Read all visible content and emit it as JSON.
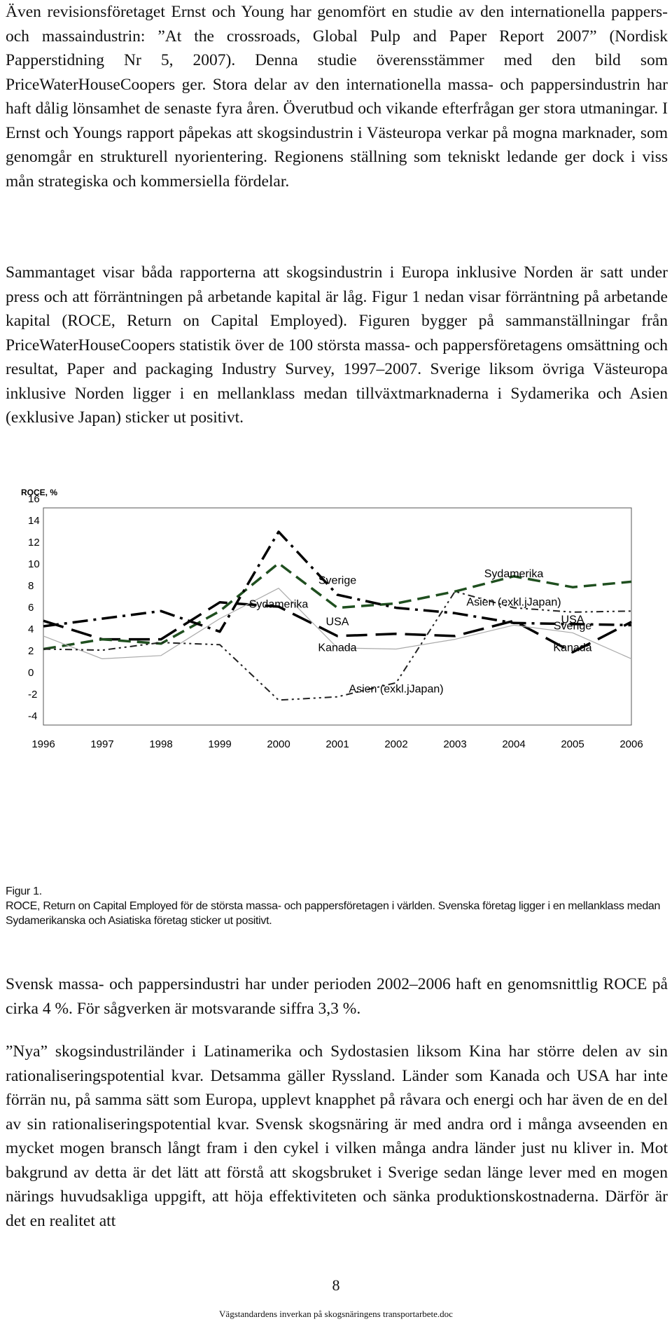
{
  "paragraphs": {
    "p1": "Även revisionsföretaget Ernst och Young har genomfört en studie av den internationella pappers- och massaindustrin: ”At the crossroads, Global Pulp and Paper Report 2007” (Nordisk Papperstidning Nr 5, 2007). Denna studie överensstämmer med den bild som PriceWaterHouseCoopers ger. Stora delar av den internationella massa- och pappersindustrin har haft dålig lönsamhet de senaste fyra åren. Överutbud och vikande efterfrågan ger stora utmaningar. I Ernst och Youngs rapport påpekas att skogsindustrin i Västeuropa verkar på mogna marknader, som genomgår en strukturell nyorientering. Regionens ställning som tekniskt ledande ger dock i viss mån strategiska och kommersiella fördelar.",
    "p2": "Sammantaget visar båda rapporterna att skogsindustrin i Europa inklusive Norden är satt under press och att förräntningen på arbetande kapital är låg. Figur 1 nedan visar förräntning på arbetande kapital (ROCE, Return on Capital Employed). Figuren bygger på sammanställningar från PriceWaterHouseCoopers statistik över de 100 största massa- och pappersföretagens omsättning och resultat, Paper and packaging Industry Survey, 1997–2007. Sverige liksom övriga Västeuropa inklusive Norden ligger i en mellanklass medan tillväxtmarknaderna i Sydamerika och Asien (exklusive Japan) sticker ut positivt.",
    "p3": "Svensk massa- och pappersindustri har under perioden 2002–2006 haft en genomsnittlig ROCE på cirka 4 %. För sågverken är motsvarande siffra 3,3 %.",
    "p4": "”Nya” skogsindustriländer i Latinamerika och Sydostasien liksom Kina har större delen av sin rationaliseringspotential kvar. Detsamma gäller Ryssland. Länder som Kanada och USA har inte förrän nu, på samma sätt som Europa, upplevt knapphet på råvara och energi och har även de en del av sin rationaliseringspotential kvar. Svensk skogsnäring är med andra ord i många avseenden en mycket mogen bransch långt fram i den cykel i vilken många andra länder just nu kliver in. Mot bakgrund av detta är det lätt att förstå att skogsbruket i Sverige sedan länge lever med en mogen närings huvudsakliga uppgift, att höja effektiviteten och sänka produktionskostnaderna. Därför är det en realitet att"
  },
  "caption": {
    "label": "Figur 1.",
    "text": "ROCE, Return on Capital Employed för de största massa- och pappersföretagen i världen. Svenska företag ligger i en mellanklass medan Sydamerikanska och Asiatiska företag sticker ut positivt."
  },
  "page_number": "8",
  "footer": "Vägstandardens inverkan på skogsnäringens transportarbete.doc",
  "chart_data": {
    "type": "line",
    "ylabel": "ROCE, %",
    "xlabel": "",
    "ylim": [
      -4,
      16
    ],
    "yticks": [
      -4,
      -2,
      0,
      2,
      4,
      6,
      8,
      10,
      12,
      14,
      16
    ],
    "x": [
      "1996",
      "1997",
      "1998",
      "1999",
      "2000",
      "2001",
      "2002",
      "2003",
      "2004",
      "2005",
      "2006"
    ],
    "grid": false,
    "series": [
      {
        "name": "Sverige",
        "style": "long-dash",
        "color": "#000000",
        "width": 3.5,
        "values": [
          5.6,
          3.9,
          3.9,
          7.3,
          6.9,
          4.2,
          4.4,
          4.2,
          5.6,
          2.7,
          5.5
        ]
      },
      {
        "name": "Sydamerika",
        "style": "dash",
        "color": "#1f4f1f",
        "width": 3.5,
        "values": [
          3.0,
          3.9,
          3.5,
          6.5,
          10.9,
          6.8,
          7.2,
          8.3,
          9.7,
          8.7,
          9.2
        ]
      },
      {
        "name": "USA",
        "style": "dash-dot",
        "color": "#000000",
        "width": 3.5,
        "values": [
          5.1,
          5.8,
          6.5,
          4.6,
          13.8,
          8.0,
          6.8,
          6.3,
          5.4,
          5.3,
          5.2
        ]
      },
      {
        "name": "Kanada",
        "style": "solid",
        "color": "#aaaaaa",
        "width": 1.2,
        "values": [
          4.2,
          2.1,
          2.4,
          5.8,
          8.6,
          3.1,
          3.0,
          3.9,
          5.2,
          4.5,
          2.1
        ]
      },
      {
        "name": "Asien (exkl.jJapan)",
        "style": "dash-dot-dot",
        "color": "#222222",
        "width": 2,
        "values": [
          3.0,
          2.9,
          3.6,
          3.4,
          -1.7,
          -1.4,
          -0.1,
          8.3,
          6.8,
          6.4,
          6.5
        ]
      }
    ],
    "annotations": [
      {
        "text": "Sverige",
        "x": "2001",
        "y": 9.0
      },
      {
        "text": "Sydamerika",
        "x": "2000",
        "y": 6.8
      },
      {
        "text": "USA",
        "x": "2001",
        "y": 5.2
      },
      {
        "text": "Kanada",
        "x": "2001",
        "y": 2.8
      },
      {
        "text": "Asien (exkl.jJapan)",
        "x": "2002",
        "y": -1.0
      },
      {
        "text": "Sydamerika",
        "x": "2004",
        "y": 9.6
      },
      {
        "text": "Asien (exkl.jJapan)",
        "x": "2004",
        "y": 7.0
      },
      {
        "text": "USA",
        "x": "2005",
        "y": 5.4
      },
      {
        "text": "Sverige",
        "x": "2005",
        "y": 4.8
      },
      {
        "text": "Kanada",
        "x": "2005",
        "y": 2.8
      }
    ]
  }
}
